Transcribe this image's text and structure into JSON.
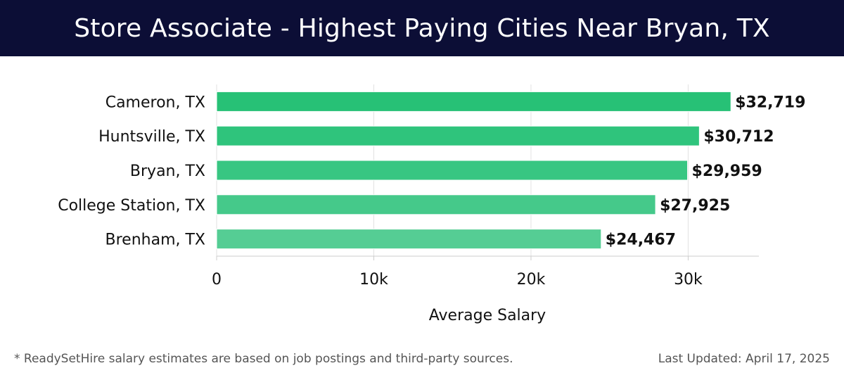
{
  "header": {
    "title": "Store Associate - Highest Paying Cities Near Bryan, TX"
  },
  "chart_data": {
    "type": "bar",
    "orientation": "horizontal",
    "categories": [
      "Cameron, TX",
      "Huntsville, TX",
      "Bryan, TX",
      "College Station, TX",
      "Brenham, TX"
    ],
    "values": [
      32719,
      30712,
      29959,
      27925,
      24467
    ],
    "value_labels": [
      "$32,719",
      "$30,712",
      "$29,959",
      "$27,925",
      "$24,467"
    ],
    "xlabel": "Average Salary",
    "xlim": [
      0,
      34500
    ],
    "xticks": [
      0,
      10000,
      20000,
      30000
    ],
    "xtick_labels": [
      "0",
      "10k",
      "20k",
      "30k"
    ],
    "grid": true,
    "bar_colors": [
      "#27c176",
      "#2fc47c",
      "#38c682",
      "#45c98a",
      "#55cd94"
    ]
  },
  "footer": {
    "footnote": "* ReadySetHire salary estimates are based on job postings and third-party sources.",
    "updated": "Last Updated: April 17, 2025"
  }
}
